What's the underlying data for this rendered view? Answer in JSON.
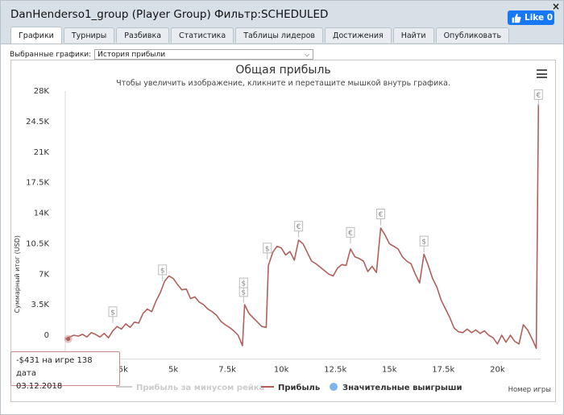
{
  "window": {
    "title": "DanHenderso1_group (Player Group) Фильтр:SCHEDULED",
    "close_label": "×",
    "like_label": "Like 0"
  },
  "tabs": [
    {
      "label": "Графики",
      "active": true
    },
    {
      "label": "Турниры",
      "active": false
    },
    {
      "label": "Разбивка",
      "active": false
    },
    {
      "label": "Статистика",
      "active": false
    },
    {
      "label": "Таблицы лидеров",
      "active": false
    },
    {
      "label": "Достижения",
      "active": false
    },
    {
      "label": "Найти",
      "active": false
    },
    {
      "label": "Опубликовать",
      "active": false
    }
  ],
  "selector": {
    "label": "Выбранные графики:",
    "value": "История прибыли"
  },
  "chart_data": {
    "type": "line",
    "title": "Общая прибыль",
    "subtitle": "Чтобы увеличить изображение, кликните и перетащите мышкой внутрь графика.",
    "ylabel": "Суммарный итог (USD)",
    "xlabel": "Номер игры",
    "ylim": [
      -2000,
      28000
    ],
    "xlim": [
      0,
      22000
    ],
    "y_ticks": [
      "0",
      "3.5K",
      "7K",
      "10.5K",
      "14K",
      "17.5K",
      "21K",
      "24.5K",
      "28K"
    ],
    "y_tick_values": [
      0,
      3500,
      7000,
      10500,
      14000,
      17500,
      21000,
      24500,
      28000
    ],
    "x_ticks": [
      "2.5k",
      "5k",
      "7.5k",
      "10k",
      "12.5k",
      "15k",
      "17.5k",
      "20k"
    ],
    "x_tick_values": [
      2500,
      5000,
      7500,
      10000,
      12500,
      15000,
      17500,
      20000
    ],
    "line_color": "#b0605a",
    "series": [
      {
        "name": "Прибыль",
        "points": [
          [
            0,
            -431
          ],
          [
            200,
            -200
          ],
          [
            400,
            0
          ],
          [
            600,
            -100
          ],
          [
            800,
            100
          ],
          [
            1000,
            -200
          ],
          [
            1200,
            300
          ],
          [
            1400,
            100
          ],
          [
            1600,
            -200
          ],
          [
            1800,
            200
          ],
          [
            2000,
            -300
          ],
          [
            2200,
            500
          ],
          [
            2400,
            1000
          ],
          [
            2600,
            700
          ],
          [
            2800,
            1300
          ],
          [
            3000,
            900
          ],
          [
            3200,
            1500
          ],
          [
            3400,
            1400
          ],
          [
            3600,
            2500
          ],
          [
            3800,
            3000
          ],
          [
            4000,
            2700
          ],
          [
            4200,
            3900
          ],
          [
            4400,
            4900
          ],
          [
            4600,
            6200
          ],
          [
            4800,
            6800
          ],
          [
            5000,
            6500
          ],
          [
            5200,
            5800
          ],
          [
            5400,
            5200
          ],
          [
            5600,
            5300
          ],
          [
            5800,
            4200
          ],
          [
            6000,
            4400
          ],
          [
            6200,
            3800
          ],
          [
            6400,
            3500
          ],
          [
            6600,
            3000
          ],
          [
            6800,
            2700
          ],
          [
            7000,
            2300
          ],
          [
            7200,
            1600
          ],
          [
            7400,
            1200
          ],
          [
            7600,
            900
          ],
          [
            7800,
            500
          ],
          [
            8000,
            0
          ],
          [
            8200,
            -1200
          ],
          [
            8300,
            3500
          ],
          [
            8500,
            2500
          ],
          [
            8700,
            2000
          ],
          [
            8900,
            1500
          ],
          [
            9100,
            1000
          ],
          [
            9300,
            900
          ],
          [
            9400,
            8000
          ],
          [
            9600,
            9500
          ],
          [
            9800,
            10200
          ],
          [
            10000,
            10000
          ],
          [
            10200,
            9200
          ],
          [
            10400,
            9600
          ],
          [
            10600,
            8600
          ],
          [
            10800,
            10900
          ],
          [
            11000,
            10500
          ],
          [
            11200,
            9500
          ],
          [
            11400,
            8500
          ],
          [
            11600,
            8200
          ],
          [
            11800,
            7800
          ],
          [
            12000,
            7400
          ],
          [
            12200,
            7000
          ],
          [
            12400,
            6800
          ],
          [
            12600,
            7700
          ],
          [
            12800,
            8100
          ],
          [
            13000,
            8000
          ],
          [
            13200,
            9900
          ],
          [
            13400,
            9000
          ],
          [
            13600,
            8800
          ],
          [
            13800,
            8500
          ],
          [
            14000,
            7300
          ],
          [
            14200,
            7900
          ],
          [
            14400,
            7200
          ],
          [
            14600,
            12300
          ],
          [
            14800,
            11500
          ],
          [
            15000,
            10500
          ],
          [
            15200,
            10200
          ],
          [
            15400,
            9900
          ],
          [
            15600,
            9000
          ],
          [
            15800,
            8500
          ],
          [
            16000,
            8200
          ],
          [
            16200,
            7000
          ],
          [
            16400,
            6000
          ],
          [
            16600,
            9300
          ],
          [
            16800,
            8000
          ],
          [
            17000,
            6500
          ],
          [
            17200,
            5500
          ],
          [
            17400,
            4000
          ],
          [
            17600,
            3000
          ],
          [
            17800,
            2000
          ],
          [
            18000,
            800
          ],
          [
            18200,
            400
          ],
          [
            18400,
            300
          ],
          [
            18600,
            700
          ],
          [
            18800,
            300
          ],
          [
            19000,
            600
          ],
          [
            19200,
            200
          ],
          [
            19400,
            500
          ],
          [
            19600,
            0
          ],
          [
            19800,
            -300
          ],
          [
            20000,
            -1000
          ],
          [
            20200,
            0
          ],
          [
            20400,
            -800
          ],
          [
            20600,
            0
          ],
          [
            20800,
            -700
          ],
          [
            21000,
            -1000
          ],
          [
            21200,
            1200
          ],
          [
            21400,
            600
          ],
          [
            21600,
            -400
          ],
          [
            21800,
            -1500
          ],
          [
            21900,
            26500
          ]
        ]
      }
    ],
    "markers": [
      {
        "x": 2200,
        "y": 2700,
        "symbol": "$"
      },
      {
        "x": 4500,
        "y": 7500,
        "symbol": "$"
      },
      {
        "x": 8250,
        "y": 5000,
        "symbol": "$"
      },
      {
        "x": 8250,
        "y": 6000,
        "symbol": "$"
      },
      {
        "x": 9350,
        "y": 10000,
        "symbol": "$"
      },
      {
        "x": 10800,
        "y": 12500,
        "symbol": "€"
      },
      {
        "x": 13200,
        "y": 11800,
        "symbol": "€"
      },
      {
        "x": 14600,
        "y": 13900,
        "symbol": "€"
      },
      {
        "x": 16600,
        "y": 10800,
        "symbol": "$"
      },
      {
        "x": 21900,
        "y": 27600,
        "symbol": "€"
      }
    ],
    "legend": [
      {
        "label": "Прибыль за минусом рейка",
        "style": "line-light"
      },
      {
        "label": "Прибыль",
        "style": "line"
      },
      {
        "label": "Значительные выигрыши",
        "style": "dot"
      }
    ],
    "tooltip": {
      "line1": "-$431 на игре 138 дата",
      "line2": "03.12.2018",
      "x": 138,
      "y": -431
    }
  }
}
